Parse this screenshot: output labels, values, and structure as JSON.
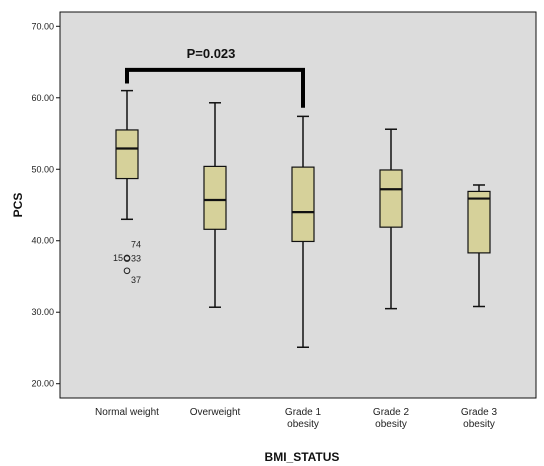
{
  "chart_data": {
    "type": "box",
    "xlabel": "BMI_STATUS",
    "ylabel": "PCS",
    "ylim": [
      18,
      72
    ],
    "yticks": [
      "20.00",
      "30.00",
      "40.00",
      "50.00",
      "60.00",
      "70.00"
    ],
    "ytick_values": [
      20,
      30,
      40,
      50,
      60,
      70
    ],
    "plot_background": "#dcdcdc",
    "box_fill": "#d6d19a",
    "categories": [
      [
        "Normal weight"
      ],
      [
        "Overweight"
      ],
      [
        "Grade 1",
        "obesity"
      ],
      [
        "Grade 2",
        "obesity"
      ],
      [
        "Grade 3",
        "obesity"
      ]
    ],
    "boxes": [
      {
        "min": 43.0,
        "q1": 48.7,
        "median": 52.9,
        "q3": 55.5,
        "max": 61.0
      },
      {
        "min": 30.7,
        "q1": 41.6,
        "median": 45.7,
        "q3": 50.4,
        "max": 59.3
      },
      {
        "min": 25.1,
        "q1": 39.9,
        "median": 44.0,
        "q3": 50.3,
        "max": 57.4
      },
      {
        "min": 30.5,
        "q1": 41.9,
        "median": 47.2,
        "q3": 49.9,
        "max": 55.6
      },
      {
        "min": 30.8,
        "q1": 38.3,
        "median": 45.9,
        "q3": 46.9,
        "max": 47.8
      }
    ],
    "outliers": [
      {
        "category": 0,
        "value": 37.6,
        "label": "15",
        "label_side": "left"
      },
      {
        "category": 0,
        "value": 37.5,
        "label": "33",
        "label_side": "right"
      },
      {
        "category": 0,
        "value": 35.8,
        "label": "",
        "label_side": "right"
      }
    ],
    "outlier_labels_extra": [
      {
        "category": 0,
        "value": 39.5,
        "label": "74"
      },
      {
        "category": 0,
        "value": 34.5,
        "label": "37"
      }
    ],
    "annotation": {
      "text": "P=0.023",
      "from_category": 0,
      "to_category": 2,
      "value": 63.9,
      "drop_to_left": 62.0,
      "drop_to_right": 58.6
    }
  }
}
